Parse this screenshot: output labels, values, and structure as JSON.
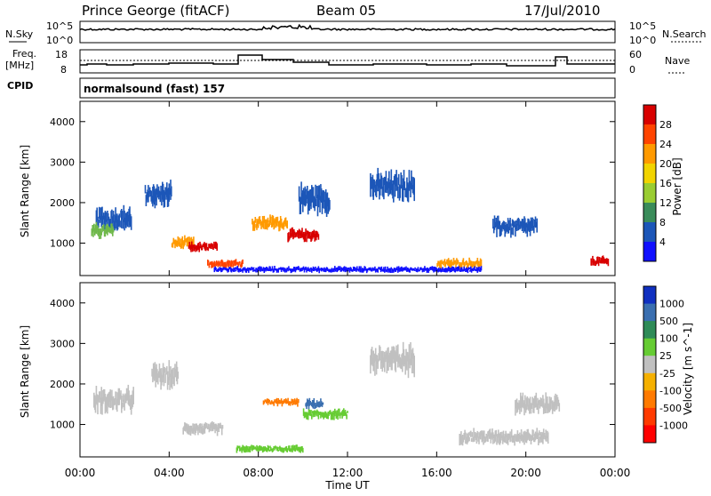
{
  "header": {
    "site": "Prince George (fitACF)",
    "beam": "Beam 05",
    "date": "17/Jul/2010"
  },
  "noise_panel": {
    "left_label": "N.Sky",
    "right_label": "N.Search",
    "left_ticks": [
      "10^5",
      "10^0"
    ],
    "right_ticks": [
      "10^5",
      "10^0"
    ]
  },
  "freq_panel": {
    "left_label_1": "Freq.",
    "left_label_2": "[MHz]",
    "right_label": "Nave",
    "left_ticks": [
      "18",
      "8"
    ],
    "right_ticks": [
      "60",
      "0"
    ]
  },
  "cpid": {
    "label": "CPID",
    "text": "normalsound (fast) 157"
  },
  "chart_data": [
    {
      "type": "heatmap",
      "name": "power",
      "ylabel": "Slant Range [km]",
      "ylim": [
        200,
        4500
      ],
      "yticks": [
        "1000",
        "2000",
        "3000",
        "4000"
      ],
      "colorbar_label": "Power [dB]",
      "colorbar_ticks": [
        "28",
        "24",
        "20",
        "16",
        "12",
        "8",
        "4"
      ],
      "colorbar_colors": [
        "#d80000",
        "#ff4400",
        "#ff9a00",
        "#f2d400",
        "#9acd32",
        "#3a8c5a",
        "#1c56b8",
        "#1010ff"
      ],
      "blobs": [
        {
          "t": 1.5,
          "r": 1600,
          "dt": 1.6,
          "dr": 500,
          "c": "#1c56b8"
        },
        {
          "t": 1.0,
          "r": 1300,
          "dt": 1.0,
          "dr": 300,
          "c": "#6fb84a"
        },
        {
          "t": 3.5,
          "r": 2200,
          "dt": 1.2,
          "dr": 500,
          "c": "#1c56b8"
        },
        {
          "t": 4.6,
          "r": 1000,
          "dt": 1.0,
          "dr": 250,
          "c": "#ff9a00"
        },
        {
          "t": 5.5,
          "r": 900,
          "dt": 1.3,
          "dr": 200,
          "c": "#d80000"
        },
        {
          "t": 6.5,
          "r": 500,
          "dt": 1.6,
          "dr": 180,
          "c": "#ff4400"
        },
        {
          "t": 8.5,
          "r": 1500,
          "dt": 1.6,
          "dr": 300,
          "c": "#ff9a00"
        },
        {
          "t": 10.0,
          "r": 1200,
          "dt": 1.4,
          "dr": 250,
          "c": "#d80000"
        },
        {
          "t": 10.5,
          "r": 2100,
          "dt": 1.4,
          "dr": 600,
          "c": "#1c56b8"
        },
        {
          "t": 14.0,
          "r": 2400,
          "dt": 2.0,
          "dr": 600,
          "c": "#1c56b8"
        },
        {
          "t": 17.0,
          "r": 500,
          "dt": 2.0,
          "dr": 200,
          "c": "#ff9a00"
        },
        {
          "t": 19.5,
          "r": 1400,
          "dt": 2.0,
          "dr": 400,
          "c": "#1c56b8"
        },
        {
          "t": 23.3,
          "r": 550,
          "dt": 0.8,
          "dr": 200,
          "c": "#d80000"
        },
        {
          "t": 12,
          "r": 350,
          "dt": 12,
          "dr": 120,
          "c": "#1010ff"
        }
      ]
    },
    {
      "type": "heatmap",
      "name": "velocity",
      "ylabel": "Slant Range [km]",
      "xlabel": "Time UT",
      "xticks": [
        "00:00",
        "04:00",
        "08:00",
        "12:00",
        "16:00",
        "20:00",
        "00:00"
      ],
      "ylim": [
        200,
        4500
      ],
      "yticks": [
        "1000",
        "2000",
        "3000",
        "4000"
      ],
      "colorbar_label": "Velocity [m s^-1]",
      "colorbar_ticks": [
        "1000",
        "500",
        "100",
        "25",
        "-25",
        "-100",
        "-500",
        "-1000"
      ],
      "colorbar_colors": [
        "#1030c0",
        "#3a6fb0",
        "#2e8b57",
        "#66cc33",
        "#c0c0c0",
        "#f5b000",
        "#ff7a00",
        "#ff3a00",
        "#ff0000"
      ],
      "blobs": [
        {
          "t": 1.5,
          "r": 1600,
          "dt": 1.8,
          "dr": 500,
          "c": "#c0c0c0"
        },
        {
          "t": 3.8,
          "r": 2200,
          "dt": 1.2,
          "dr": 500,
          "c": "#c0c0c0"
        },
        {
          "t": 5.5,
          "r": 900,
          "dt": 1.8,
          "dr": 250,
          "c": "#c0c0c0"
        },
        {
          "t": 9.0,
          "r": 1550,
          "dt": 1.6,
          "dr": 150,
          "c": "#ff7a00"
        },
        {
          "t": 10.5,
          "r": 1500,
          "dt": 0.8,
          "dr": 200,
          "c": "#3a6fb0"
        },
        {
          "t": 11.0,
          "r": 1250,
          "dt": 2.0,
          "dr": 200,
          "c": "#66cc33"
        },
        {
          "t": 8.5,
          "r": 400,
          "dt": 3.0,
          "dr": 150,
          "c": "#66cc33"
        },
        {
          "t": 14.0,
          "r": 2600,
          "dt": 2.0,
          "dr": 600,
          "c": "#c0c0c0"
        },
        {
          "t": 19.0,
          "r": 700,
          "dt": 4.0,
          "dr": 300,
          "c": "#c0c0c0"
        },
        {
          "t": 20.5,
          "r": 1500,
          "dt": 2.0,
          "dr": 400,
          "c": "#c0c0c0"
        }
      ]
    }
  ]
}
